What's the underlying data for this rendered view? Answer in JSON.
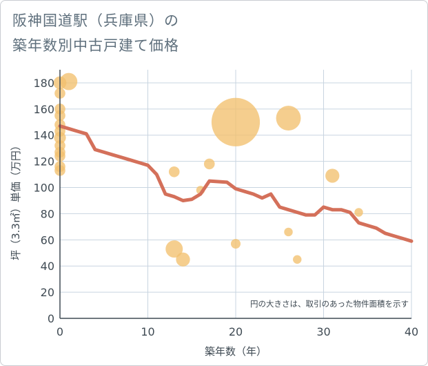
{
  "chart_data": {
    "type": "scatter",
    "title_lines": [
      "阪神国道駅（兵庫県）の",
      "築年数別中古戸建て価格"
    ],
    "xlabel": "築年数（年）",
    "ylabel": "坪（3.3㎡）単価（万円）",
    "xlim": [
      0,
      40
    ],
    "ylim": [
      0,
      190
    ],
    "x_ticks": [
      0,
      10,
      20,
      30,
      40
    ],
    "y_ticks": [
      0,
      20,
      40,
      60,
      80,
      100,
      120,
      140,
      160,
      180
    ],
    "grid": true,
    "annotation": "円の大きさは、取引のあった物件面積を示す",
    "colors": {
      "bubble": "#f2c06e",
      "line": "#d4705a",
      "grid": "#c8d4e0"
    },
    "bubbles": [
      {
        "x": 0,
        "y": 180,
        "size": 1.2
      },
      {
        "x": 0,
        "y": 172,
        "size": 1.0
      },
      {
        "x": 0,
        "y": 160,
        "size": 1.0
      },
      {
        "x": 0,
        "y": 155,
        "size": 1.0
      },
      {
        "x": 0,
        "y": 148,
        "size": 1.0
      },
      {
        "x": 0,
        "y": 143,
        "size": 1.0
      },
      {
        "x": 0,
        "y": 138,
        "size": 1.1
      },
      {
        "x": 0,
        "y": 132,
        "size": 1.0
      },
      {
        "x": 0,
        "y": 127,
        "size": 1.0
      },
      {
        "x": 0,
        "y": 124,
        "size": 1.0
      },
      {
        "x": 0,
        "y": 116,
        "size": 1.0
      },
      {
        "x": 0,
        "y": 113,
        "size": 1.0
      },
      {
        "x": 1,
        "y": 181,
        "size": 1.6
      },
      {
        "x": 13,
        "y": 112,
        "size": 1.0
      },
      {
        "x": 13,
        "y": 53,
        "size": 1.6
      },
      {
        "x": 14,
        "y": 45,
        "size": 1.3
      },
      {
        "x": 16,
        "y": 98,
        "size": 0.8
      },
      {
        "x": 17,
        "y": 118,
        "size": 1.0
      },
      {
        "x": 20,
        "y": 150,
        "size": 4.5
      },
      {
        "x": 20,
        "y": 57,
        "size": 0.9
      },
      {
        "x": 26,
        "y": 153,
        "size": 2.3
      },
      {
        "x": 26,
        "y": 66,
        "size": 0.8
      },
      {
        "x": 27,
        "y": 45,
        "size": 0.8
      },
      {
        "x": 31,
        "y": 109,
        "size": 1.3
      },
      {
        "x": 34,
        "y": 81,
        "size": 0.8
      }
    ],
    "trend_line": {
      "x": [
        0,
        1,
        2,
        3,
        4,
        5,
        6,
        7,
        8,
        9,
        10,
        11,
        12,
        13,
        14,
        15,
        16,
        17,
        18,
        19,
        20,
        21,
        22,
        23,
        24,
        25,
        26,
        27,
        28,
        29,
        30,
        31,
        32,
        33,
        34,
        35,
        36,
        37,
        38,
        39,
        40
      ],
      "y": [
        147,
        145,
        143,
        141,
        129,
        127,
        125,
        123,
        121,
        119,
        117,
        110,
        95,
        93,
        90,
        91,
        95,
        105,
        104.5,
        104,
        99,
        97,
        95,
        92,
        95,
        85,
        83,
        81,
        79,
        79,
        85,
        83,
        83,
        81,
        73,
        71,
        69,
        65,
        63,
        61,
        59
      ]
    }
  }
}
